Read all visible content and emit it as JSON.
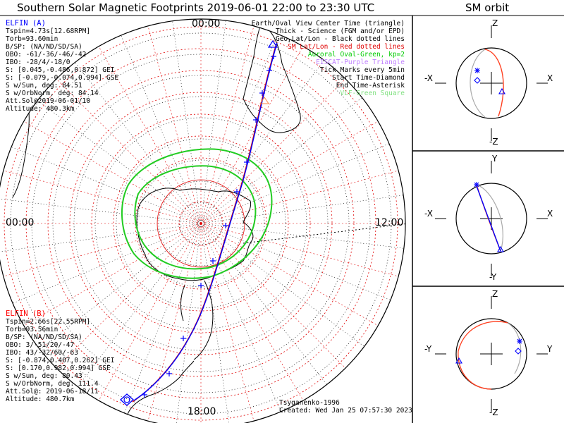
{
  "title": "Southern Solar Magnetic Footprints 2019-06-01 22:00 to 23:30 UTC",
  "orbit_title": "SM orbit",
  "time_labels": {
    "top": "00:00",
    "left": "00:00",
    "right": "12:00",
    "bottom": "18:00"
  },
  "legend": [
    {
      "text": "Earth/Oval View Center Time (triangle)",
      "color": "#000000"
    },
    {
      "text": "Thick - Science (FGM and/or EPD)",
      "color": "#000000"
    },
    {
      "text": "Geo Lat/Lon - Black dotted lines",
      "color": "#000000"
    },
    {
      "text": "SM Lat/Lon - Red dotted lines",
      "color": "#e00000"
    },
    {
      "text": "Auroral Oval-Green, kp=2",
      "color": "#00cc00"
    },
    {
      "text": "EISCAT-Purple Triangle",
      "color": "#c080ff"
    },
    {
      "text": "Tick Marks every 5min",
      "color": "#000000"
    },
    {
      "text": "Start Time-Diamond",
      "color": "#000000"
    },
    {
      "text": "End Time-Asterisk",
      "color": "#000000"
    },
    {
      "text": "VLF-Green Square",
      "color": "#80e080"
    }
  ],
  "elfin_a": {
    "title": "ELFIN (A)",
    "color": "#0000ff",
    "lines": [
      "Tspin=4.73s[12.68RPM]",
      "Torb=93.60min",
      "B/SP: (NA/ND/SD/SA)",
      "OBO: -61/-36/-46/-42",
      "IBO: -28/4/-18/0",
      "S: [0.045,-0.486,0.872] GEI",
      "S: [-0.079,-0.074,0.994] GSE",
      "S w/Sun, deg: 84.51",
      "S w/OrbNorm, deg: 84.14",
      "Att.Sol@2019-06-01/10",
      "Altitude: 480.3km"
    ]
  },
  "elfin_b": {
    "title": "ELFIN (B)",
    "color": "#ff0000",
    "lines": [
      "Tspin=2.66s[22.55RPM]",
      "Torb=93.56min",
      "B/SP: (NA/ND/SD/SA)",
      "OBO: 3/-51/20/-47",
      "IBO: 43/-32/60/-63",
      "S: [-0.874,0.407,0.262] GEI",
      "S: [0.170,0.982,0.994] GSE",
      "S w/Sun, deg: 80.43",
      "S w/OrbNorm, deg: 111.4",
      "Att.Sol@: 2019-06-18/11",
      "Altitude: 480.7km"
    ]
  },
  "credit": "Tsyganenko-1996",
  "created": "Created: Wed Jan 25 07:57:30 2023",
  "panels": [
    {
      "top": "Z",
      "bottom": "-Z",
      "left": "-X",
      "right": "X"
    },
    {
      "top": "Y",
      "bottom": "-Y",
      "left": "-X",
      "right": "X"
    },
    {
      "top": "Z",
      "bottom": "-Z",
      "left": "-Y",
      "right": "Y"
    }
  ],
  "chart_data": {
    "type": "scatter",
    "title": "Southern Solar Magnetic Footprints 2019-06-01 22:00 to 23:30 UTC",
    "projection": "polar (south pole), magnetic local time around perimeter",
    "mlt_labels": [
      "00:00",
      "12:00",
      "18:00"
    ],
    "series": [
      {
        "name": "ELFIN (A)",
        "color": "#0000ff"
      },
      {
        "name": "ELFIN (B)",
        "color": "#ff0000"
      }
    ],
    "grid": true
  }
}
